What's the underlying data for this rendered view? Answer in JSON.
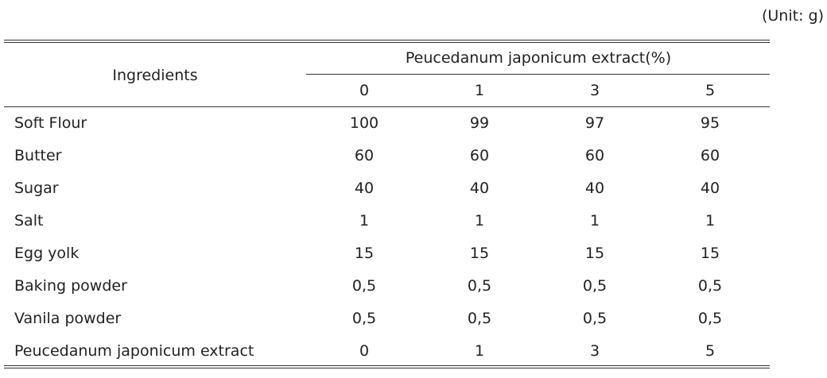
{
  "unit": "(Unit: g)",
  "table": {
    "row_header": "Ingredients",
    "group_header": "Peucedanum japonicum extract(%)",
    "columns": [
      0,
      1,
      3,
      5
    ],
    "rows": [
      [
        "Soft Flour",
        100,
        99,
        97,
        95
      ],
      [
        "Butter",
        60,
        60,
        60,
        60
      ],
      [
        "Sugar",
        40,
        40,
        40,
        40
      ],
      [
        "Salt",
        1,
        1,
        1,
        1
      ],
      [
        "Egg yolk",
        15,
        15,
        15,
        15
      ],
      [
        "Baking powder",
        "0,5",
        "0,5",
        "0,5",
        "0,5"
      ],
      [
        "Vanila powder",
        "0,5",
        "0,5",
        "0,5",
        "0,5"
      ],
      [
        "Peucedanum japonicum extract",
        0,
        1,
        3,
        5
      ]
    ]
  }
}
